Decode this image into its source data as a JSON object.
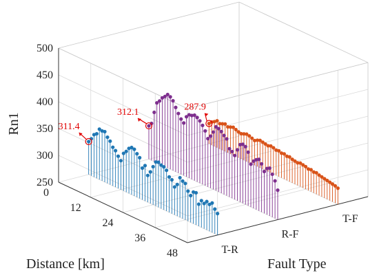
{
  "chart_data": {
    "type": "3d-stem",
    "xlabel": "Distance [km]",
    "ylabel": "Fault Type",
    "zlabel": "Rn1",
    "x_ticks": [
      "0",
      "12",
      "24",
      "36",
      "48"
    ],
    "y_categories": [
      "T-R",
      "R-F",
      "T-F"
    ],
    "z_ticks": [
      "250",
      "300",
      "350",
      "400",
      "450",
      "500"
    ],
    "xlim": [
      0,
      48
    ],
    "zlim": [
      250,
      500
    ],
    "grid": true,
    "series": [
      {
        "category": "T-R",
        "color": "#1f77b4",
        "x": [
          0,
          1,
          2,
          3,
          4,
          5,
          6,
          7,
          8,
          9,
          10,
          11,
          12,
          13,
          14,
          15,
          16,
          17,
          18,
          19,
          20,
          21,
          22,
          23,
          24,
          25,
          26,
          27,
          28,
          29,
          30,
          31,
          32,
          33,
          34,
          35,
          36,
          37,
          38,
          39,
          40,
          41,
          42,
          43,
          44,
          45,
          46,
          47,
          48
        ],
        "values": [
          311.4,
          319,
          329,
          333,
          344,
          343,
          344,
          336,
          331,
          322,
          318,
          310,
          304,
          320,
          326,
          334,
          338,
          337,
          331,
          326,
          309,
          316,
          300,
          309,
          321,
          332,
          334,
          331,
          330,
          326,
          316,
          313,
          302,
          309,
          324,
          320,
          318,
          306,
          300,
          309,
          310,
          291,
          300,
          297,
          303,
          300,
          305,
          296,
          290
        ]
      },
      {
        "category": "R-F",
        "color": "#7e2f8e",
        "x": [
          0,
          1,
          2,
          3,
          4,
          5,
          6,
          7,
          8,
          9,
          10,
          11,
          12,
          13,
          14,
          15,
          16,
          17,
          18,
          19,
          20,
          21,
          22,
          23,
          24,
          25,
          26,
          27,
          28,
          29,
          30,
          31,
          32,
          33,
          34,
          35,
          36,
          37,
          38,
          39,
          40,
          41,
          42,
          43,
          44,
          45,
          46,
          47,
          48
        ],
        "values": [
          312.1,
          319,
          342,
          362,
          368,
          376,
          381,
          387,
          385,
          380,
          370,
          361,
          353,
          348,
          362,
          368,
          369,
          372,
          370,
          366,
          360,
          352,
          340,
          347,
          357,
          369,
          368,
          365,
          360,
          356,
          340,
          337,
          332,
          345,
          357,
          360,
          358,
          350,
          330,
          338,
          343,
          346,
          340,
          328,
          336,
          339,
          330,
          320,
          305
        ]
      },
      {
        "category": "T-F",
        "color": "#d95319",
        "x": [
          0,
          1,
          2,
          3,
          4,
          5,
          6,
          7,
          8,
          9,
          10,
          11,
          12,
          13,
          14,
          15,
          16,
          17,
          18,
          19,
          20,
          21,
          22,
          23,
          24,
          25,
          26,
          27,
          28,
          29,
          30,
          31,
          32,
          33,
          34,
          35,
          36,
          37,
          38,
          39,
          40,
          41,
          42,
          43,
          44,
          45,
          46,
          47,
          48
        ],
        "values": [
          287.9,
          293,
          296,
          300,
          297,
          299,
          301,
          298,
          300,
          302,
          300,
          298,
          297,
          299,
          301,
          300,
          298,
          296,
          299,
          301,
          300,
          299,
          298,
          300,
          299,
          297,
          298,
          296,
          297,
          295,
          296,
          294,
          293,
          292,
          294,
          293,
          292,
          290,
          291,
          289,
          290,
          288,
          287,
          286,
          285,
          284,
          283,
          282,
          280
        ]
      }
    ],
    "annotations": [
      {
        "label": "311.4",
        "category": "T-R",
        "x": 0,
        "value": 311.4
      },
      {
        "label": "312.1",
        "category": "R-F",
        "x": 0,
        "value": 312.1
      },
      {
        "label": "287.9",
        "category": "T-F",
        "x": 0,
        "value": 287.9
      }
    ]
  }
}
